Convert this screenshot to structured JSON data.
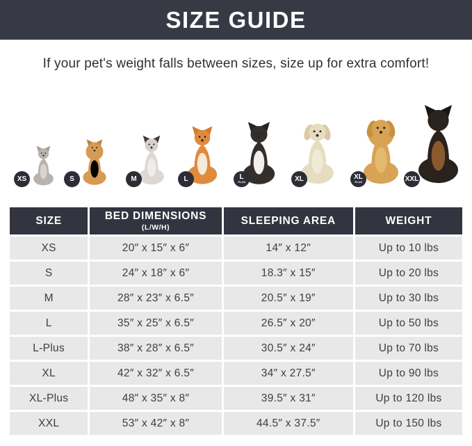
{
  "banner": {
    "title": "SIZE GUIDE"
  },
  "subtitle": "If your pet's weight falls between sizes, size up for extra comfort!",
  "colors": {
    "banner_bg": "#373945",
    "table_header_bg": "#32343f",
    "row_bg": "#e8e8e8",
    "badge_bg": "#2c2d36",
    "accent_text": "#2e2f39"
  },
  "animals": [
    {
      "animal": "cat",
      "badge": "XS",
      "badge_sub": "",
      "color": "#b9b3ae",
      "head_color": "#b9b3ae",
      "ear_color": "#a39d98",
      "chest_color": "#d9d4d0",
      "ears": "pointy",
      "fluffy": false
    },
    {
      "animal": "pomeranian",
      "badge": "S",
      "badge_sub": "",
      "color": "#d79a55",
      "head_color": "#d79a55",
      "ear_color": "#c0823f",
      "chest_color": "#e9c髙96",
      "ears": "pointy",
      "fluffy": true
    },
    {
      "animal": "french-bulldog",
      "badge": "M",
      "badge_sub": "",
      "color": "#dcd8d3",
      "head_color": "#d5d0cb",
      "ear_color": "#3f3b39",
      "chest_color": "#efece9",
      "ears": "pointy",
      "fluffy": false
    },
    {
      "animal": "shiba-inu",
      "badge": "L",
      "badge_sub": "",
      "color": "#e08a3c",
      "head_color": "#e08a3c",
      "ear_color": "#d07c2e",
      "chest_color": "#f6ead8",
      "ears": "pointy",
      "fluffy": false
    },
    {
      "animal": "border-collie",
      "badge": "L",
      "badge_sub": "PLUS",
      "color": "#332f2c",
      "head_color": "#332f2c",
      "ear_color": "#262220",
      "chest_color": "#f2efec",
      "ears": "pointy",
      "fluffy": false
    },
    {
      "animal": "labrador",
      "badge": "XL",
      "badge_sub": "",
      "color": "#e6dcc0",
      "head_color": "#e6dcc0",
      "ear_color": "#d9c9a4",
      "chest_color": "#f1ead6",
      "ears": "floppy",
      "fluffy": false
    },
    {
      "animal": "golden-retriever",
      "badge": "XL",
      "badge_sub": "PLUS",
      "color": "#d8a355",
      "head_color": "#d8a355",
      "ear_color": "#c8913f",
      "chest_color": "#e3b96f",
      "ears": "floppy",
      "fluffy": true
    },
    {
      "animal": "doberman",
      "badge": "XXL",
      "badge_sub": "",
      "color": "#2a221d",
      "head_color": "#2a221d",
      "ear_color": "#1d1714",
      "chest_color": "#8a5a2e",
      "ears": "pointy",
      "fluffy": false
    }
  ],
  "table": {
    "columns": [
      "SIZE",
      "BED DIMENSIONS",
      "SLEEPING AREA",
      "WEIGHT"
    ],
    "col2_sub": "(L/W/H)",
    "rows": [
      {
        "size": "XS",
        "bed": "20″ x 15″ x 6″",
        "sleeping": "14″ x 12″",
        "weight": "Up to 10 lbs"
      },
      {
        "size": "S",
        "bed": "24″ x 18″ x 6″",
        "sleeping": "18.3″ x 15″",
        "weight": "Up to 20 lbs"
      },
      {
        "size": "M",
        "bed": "28″ x 23″ x 6.5″",
        "sleeping": "20.5″ x 19″",
        "weight": "Up to 30 lbs"
      },
      {
        "size": "L",
        "bed": "35″ x 25″ x 6.5″",
        "sleeping": "26.5″ x 20″",
        "weight": "Up to 50 lbs"
      },
      {
        "size": "L-Plus",
        "bed": "38″ x 28″ x 6.5″",
        "sleeping": "30.5″ x 24″",
        "weight": "Up to 70 lbs"
      },
      {
        "size": "XL",
        "bed": "42″ x 32″ x 6.5″",
        "sleeping": "34″ x 27.5″",
        "weight": "Up to 90 lbs"
      },
      {
        "size": "XL-Plus",
        "bed": "48″ x 35″ x 8″",
        "sleeping": "39.5″ x 31″",
        "weight": "Up to 120 lbs"
      },
      {
        "size": "XXL",
        "bed": "53″ x 42″ x 8″",
        "sleeping": "44.5″ x 37.5″",
        "weight": "Up to 150 lbs"
      }
    ]
  }
}
